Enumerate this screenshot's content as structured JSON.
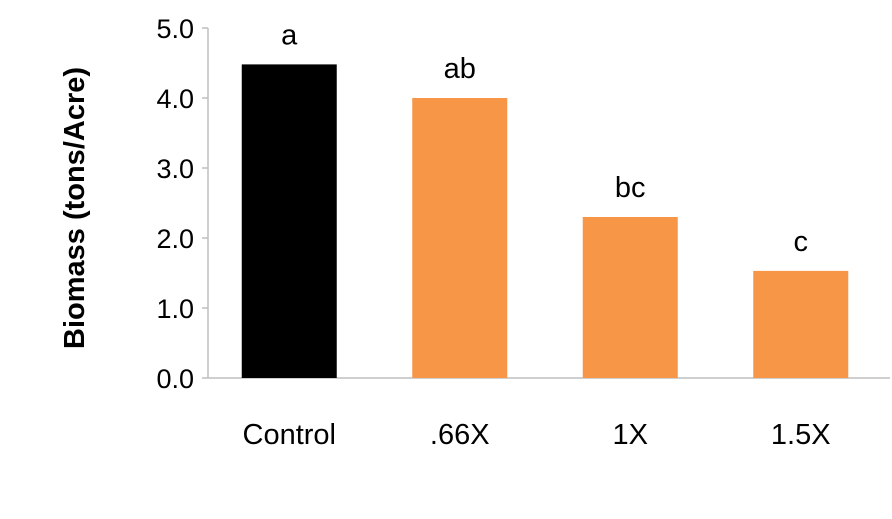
{
  "chart_data": {
    "type": "bar",
    "title": "",
    "xlabel": "",
    "ylabel": "Biomass (tons/Acre)",
    "ylim": [
      0,
      5
    ],
    "yticks": [
      "0.0",
      "1.0",
      "2.0",
      "3.0",
      "4.0",
      "5.0"
    ],
    "grid": false,
    "categories": [
      "Control",
      ".66X",
      "1X",
      "1.5X"
    ],
    "values": [
      4.48,
      4.0,
      2.3,
      1.53
    ],
    "bar_labels": [
      "a",
      "ab",
      "bc",
      "c"
    ],
    "colors": [
      "#000000",
      "#F79646",
      "#F79646",
      "#F79646"
    ],
    "axis_color": "#BFBFBF"
  }
}
